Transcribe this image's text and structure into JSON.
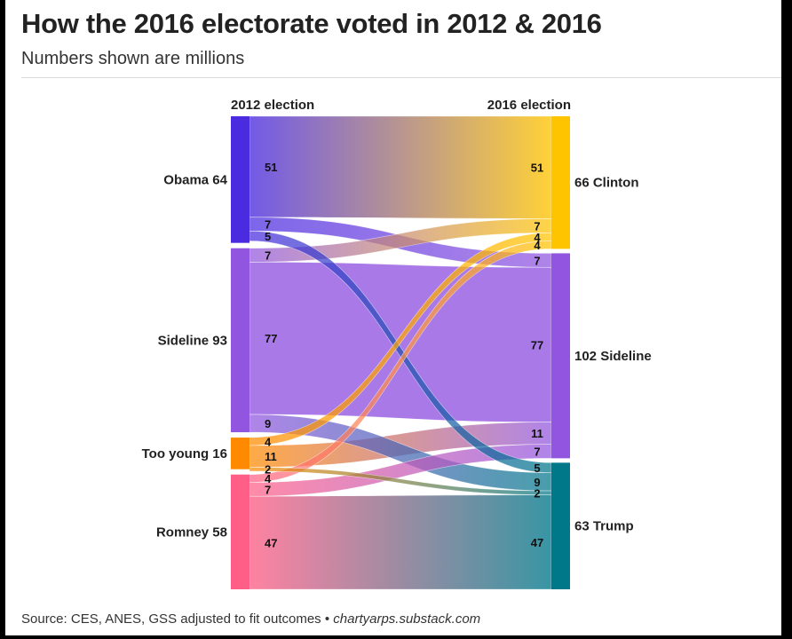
{
  "header": {
    "title": "How the 2016 electorate voted in 2012 & 2016",
    "subtitle": "Numbers shown are millions"
  },
  "footer": {
    "source": "Source: CES, ANES, GSS adjusted to fit outcomes •",
    "site": "chartyarps.substack.com"
  },
  "colors": {
    "obama": "#4a2be0",
    "sideline2012": "#9155e0",
    "too_young": "#ff8a00",
    "romney": "#ff5f87",
    "clinton": "#ffc400",
    "sideline2016": "#9155e0",
    "trump": "#00788a"
  },
  "chart_data": {
    "type": "sankey",
    "units": "millions",
    "left_column_label": "2012 election",
    "right_column_label": "2016 election",
    "left_nodes": [
      {
        "id": "obama",
        "name": "Obama",
        "total": 64,
        "label": "Obama 64"
      },
      {
        "id": "sideline2012",
        "name": "Sideline",
        "total": 93,
        "label": "Sideline 93"
      },
      {
        "id": "too_young",
        "name": "Too young",
        "total": 16,
        "label": "Too young 16"
      },
      {
        "id": "romney",
        "name": "Romney",
        "total": 58,
        "label": "Romney 58"
      }
    ],
    "right_nodes": [
      {
        "id": "clinton",
        "name": "Clinton",
        "total": 66,
        "label": "66 Clinton"
      },
      {
        "id": "sideline2016",
        "name": "Sideline",
        "total": 102,
        "label": "102 Sideline"
      },
      {
        "id": "trump",
        "name": "Trump",
        "total": 63,
        "label": "63 Trump"
      }
    ],
    "links": [
      {
        "source": "obama",
        "target": "clinton",
        "value": 51
      },
      {
        "source": "obama",
        "target": "sideline2016",
        "value": 7
      },
      {
        "source": "obama",
        "target": "trump",
        "value": 5
      },
      {
        "source": "sideline2012",
        "target": "clinton",
        "value": 7
      },
      {
        "source": "sideline2012",
        "target": "sideline2016",
        "value": 77
      },
      {
        "source": "sideline2012",
        "target": "trump",
        "value": 9
      },
      {
        "source": "too_young",
        "target": "clinton",
        "value": 4
      },
      {
        "source": "too_young",
        "target": "sideline2016",
        "value": 11
      },
      {
        "source": "too_young",
        "target": "trump",
        "value": 2
      },
      {
        "source": "romney",
        "target": "clinton",
        "value": 4
      },
      {
        "source": "romney",
        "target": "sideline2016",
        "value": 7
      },
      {
        "source": "romney",
        "target": "trump",
        "value": 47
      }
    ]
  }
}
